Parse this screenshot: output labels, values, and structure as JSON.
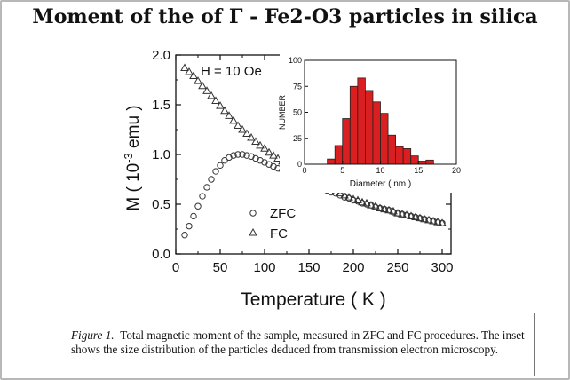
{
  "title": "Moment of the of  Γ - Fe2-O3 particles in silica",
  "caption": {
    "label": "Figure 1.",
    "text": "Total magnetic moment of the sample, measured in ZFC and FC procedures. The inset shows the size distribution of the particles deduced from transmission electron microscopy."
  },
  "chart_data": [
    {
      "type": "scatter",
      "title": "",
      "xlabel": "Temperature ( K )",
      "ylabel": "M  ( 10 -3 emu  )",
      "ylabel_parts": [
        "M  ( 10",
        "-3",
        " emu  )"
      ],
      "xlim": [
        0,
        310
      ],
      "ylim": [
        0,
        2.0
      ],
      "xticks": [
        0,
        50,
        100,
        150,
        200,
        250,
        300
      ],
      "yticks": [
        0.0,
        0.5,
        1.0,
        1.5,
        2.0
      ],
      "ytick_labels": [
        "0.0",
        "0.5",
        "1.0",
        "1.5",
        "2.0"
      ],
      "annotation": "H = 10 Oe",
      "legend_position": "lower-left",
      "series": [
        {
          "name": "ZFC",
          "marker": "circle",
          "points": [
            [
              10,
              0.19
            ],
            [
              15,
              0.28
            ],
            [
              20,
              0.38
            ],
            [
              25,
              0.48
            ],
            [
              30,
              0.58
            ],
            [
              35,
              0.67
            ],
            [
              40,
              0.75
            ],
            [
              45,
              0.83
            ],
            [
              50,
              0.89
            ],
            [
              55,
              0.94
            ],
            [
              60,
              0.97
            ],
            [
              65,
              0.99
            ],
            [
              70,
              1.0
            ],
            [
              75,
              1.0
            ],
            [
              80,
              0.99
            ],
            [
              85,
              0.98
            ],
            [
              90,
              0.96
            ],
            [
              95,
              0.94
            ],
            [
              100,
              0.92
            ],
            [
              105,
              0.9
            ],
            [
              110,
              0.88
            ],
            [
              115,
              0.86
            ],
            [
              120,
              0.84
            ],
            [
              125,
              0.82
            ],
            [
              130,
              0.8
            ],
            [
              135,
              0.78
            ],
            [
              140,
              0.76
            ],
            [
              145,
              0.74
            ],
            [
              150,
              0.72
            ],
            [
              155,
              0.7
            ],
            [
              160,
              0.68
            ],
            [
              165,
              0.66
            ],
            [
              170,
              0.64
            ],
            [
              175,
              0.62
            ],
            [
              180,
              0.61
            ],
            [
              185,
              0.59
            ],
            [
              190,
              0.57
            ],
            [
              195,
              0.56
            ],
            [
              200,
              0.54
            ],
            [
              205,
              0.53
            ],
            [
              210,
              0.51
            ],
            [
              215,
              0.5
            ],
            [
              220,
              0.49
            ],
            [
              225,
              0.47
            ],
            [
              230,
              0.46
            ],
            [
              235,
              0.45
            ],
            [
              240,
              0.44
            ],
            [
              245,
              0.42
            ],
            [
              250,
              0.41
            ],
            [
              255,
              0.4
            ],
            [
              260,
              0.39
            ],
            [
              265,
              0.38
            ],
            [
              270,
              0.37
            ],
            [
              275,
              0.36
            ],
            [
              280,
              0.35
            ],
            [
              285,
              0.34
            ],
            [
              290,
              0.33
            ],
            [
              295,
              0.32
            ],
            [
              300,
              0.31
            ]
          ]
        },
        {
          "name": "FC",
          "marker": "triangle",
          "points": [
            [
              10,
              1.87
            ],
            [
              15,
              1.83
            ],
            [
              20,
              1.79
            ],
            [
              25,
              1.74
            ],
            [
              30,
              1.69
            ],
            [
              35,
              1.64
            ],
            [
              40,
              1.59
            ],
            [
              45,
              1.54
            ],
            [
              50,
              1.49
            ],
            [
              55,
              1.44
            ],
            [
              60,
              1.39
            ],
            [
              65,
              1.34
            ],
            [
              70,
              1.29
            ],
            [
              75,
              1.25
            ],
            [
              80,
              1.21
            ],
            [
              85,
              1.17
            ],
            [
              90,
              1.13
            ],
            [
              95,
              1.09
            ],
            [
              100,
              1.06
            ],
            [
              105,
              1.02
            ],
            [
              110,
              0.99
            ],
            [
              115,
              0.96
            ],
            [
              120,
              0.93
            ],
            [
              125,
              0.9
            ],
            [
              130,
              0.87
            ],
            [
              135,
              0.84
            ],
            [
              140,
              0.81
            ],
            [
              145,
              0.79
            ],
            [
              150,
              0.76
            ],
            [
              155,
              0.74
            ],
            [
              160,
              0.71
            ],
            [
              165,
              0.69
            ],
            [
              170,
              0.67
            ],
            [
              175,
              0.65
            ],
            [
              180,
              0.63
            ],
            [
              185,
              0.61
            ],
            [
              190,
              0.59
            ],
            [
              195,
              0.57
            ],
            [
              200,
              0.55
            ],
            [
              205,
              0.54
            ],
            [
              210,
              0.52
            ],
            [
              215,
              0.51
            ],
            [
              220,
              0.49
            ],
            [
              225,
              0.48
            ],
            [
              230,
              0.46
            ],
            [
              235,
              0.45
            ],
            [
              240,
              0.44
            ],
            [
              245,
              0.43
            ],
            [
              250,
              0.41
            ],
            [
              255,
              0.4
            ],
            [
              260,
              0.39
            ],
            [
              265,
              0.38
            ],
            [
              270,
              0.37
            ],
            [
              275,
              0.36
            ],
            [
              280,
              0.35
            ],
            [
              285,
              0.34
            ],
            [
              290,
              0.33
            ],
            [
              295,
              0.32
            ],
            [
              300,
              0.31
            ]
          ]
        }
      ]
    },
    {
      "type": "bar",
      "title": "",
      "xlabel": "Diameter ( nm )",
      "ylabel": "NUMBER",
      "xlim": [
        0,
        20
      ],
      "ylim": [
        0,
        100
      ],
      "xticks": [
        0,
        5,
        10,
        15,
        20
      ],
      "yticks": [
        0,
        25,
        50,
        75,
        100
      ],
      "bin_width": 1,
      "bars": [
        {
          "left": 3,
          "value": 5
        },
        {
          "left": 4,
          "value": 18
        },
        {
          "left": 5,
          "value": 44
        },
        {
          "left": 6,
          "value": 75
        },
        {
          "left": 7,
          "value": 83
        },
        {
          "left": 8,
          "value": 71
        },
        {
          "left": 9,
          "value": 60
        },
        {
          "left": 10,
          "value": 49
        },
        {
          "left": 11,
          "value": 28
        },
        {
          "left": 12,
          "value": 17
        },
        {
          "left": 13,
          "value": 15
        },
        {
          "left": 14,
          "value": 8
        },
        {
          "left": 15,
          "value": 3
        },
        {
          "left": 16,
          "value": 4
        }
      ],
      "colors": {
        "bar_fill": "#d91f1f",
        "bar_stroke": "#222222"
      }
    }
  ]
}
